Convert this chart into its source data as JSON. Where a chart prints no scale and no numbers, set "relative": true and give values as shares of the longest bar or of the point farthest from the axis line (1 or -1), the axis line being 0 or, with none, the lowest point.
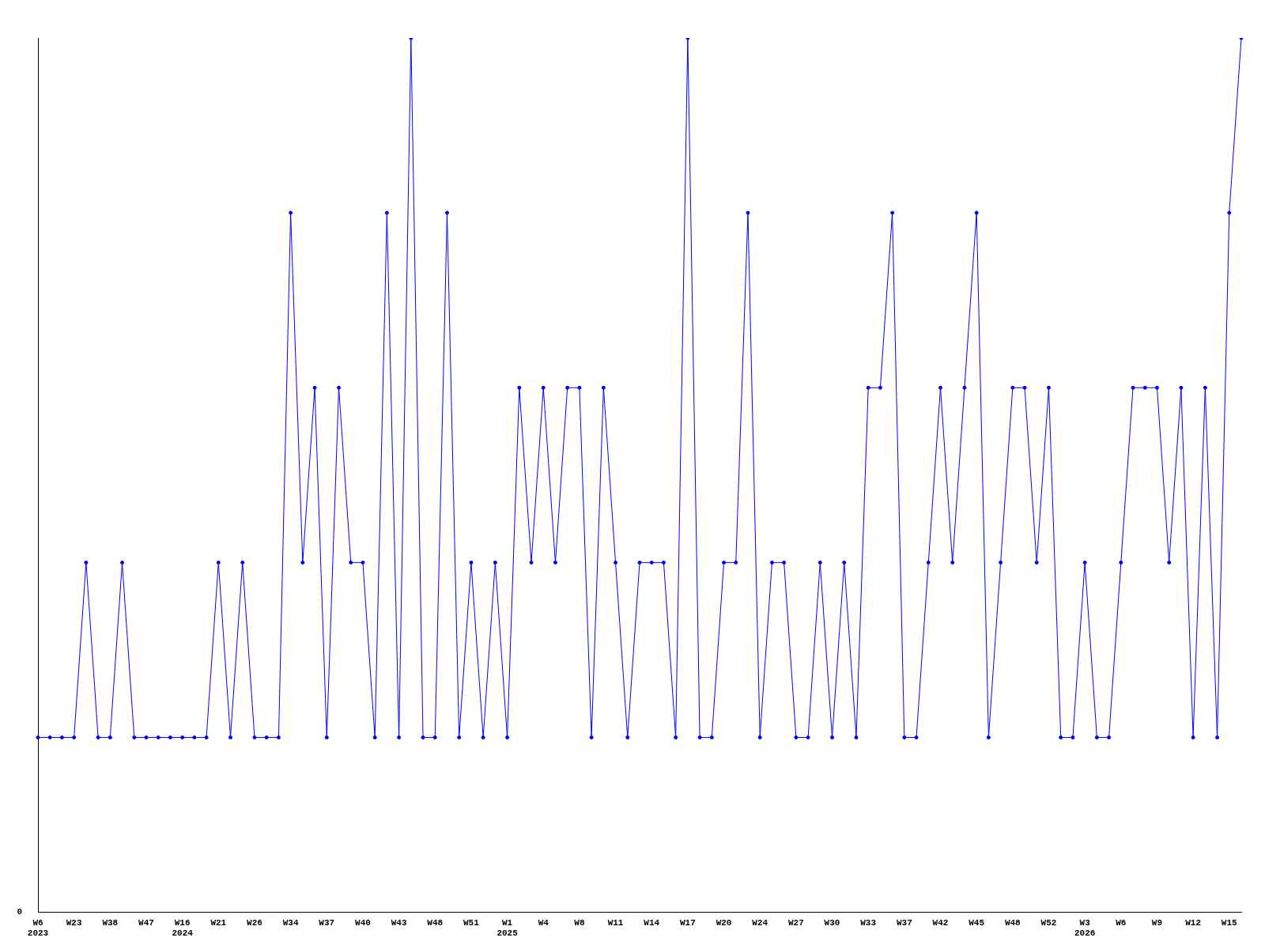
{
  "chart_data": {
    "type": "line",
    "relative": true,
    "color": "#0000ff",
    "marker": "circle",
    "grid": false,
    "legend": false,
    "annotations": [
      "0"
    ],
    "categories": [
      "W6\n2023",
      null,
      null,
      "W23",
      null,
      null,
      "W38",
      null,
      null,
      "W47",
      null,
      null,
      "W16\n2024",
      null,
      null,
      "W21",
      null,
      null,
      "W26",
      null,
      null,
      "W34",
      null,
      null,
      "W37",
      null,
      null,
      "W40",
      null,
      null,
      "W43",
      null,
      null,
      "W48",
      null,
      null,
      "W51",
      null,
      null,
      "W1\n2025",
      null,
      null,
      "W4",
      null,
      null,
      "W8",
      null,
      null,
      "W11",
      null,
      null,
      "W14",
      null,
      null,
      "W17",
      null,
      null,
      "W20",
      null,
      null,
      "W24",
      null,
      null,
      "W27",
      null,
      null,
      "W30",
      null,
      null,
      "W33",
      null,
      null,
      "W37",
      null,
      null,
      "W42",
      null,
      null,
      "W45",
      null,
      null,
      "W48",
      null,
      null,
      "W52",
      null,
      null,
      "W3\n2026",
      null,
      null,
      "W6",
      null,
      null,
      "W9",
      null,
      null,
      "W12",
      null,
      null,
      "W15",
      null
    ],
    "values": [
      0.2,
      0.2,
      0.2,
      0.2,
      0.4,
      0.2,
      0.2,
      0.4,
      0.2,
      0.2,
      0.2,
      0.2,
      0.2,
      0.2,
      0.2,
      0.4,
      0.2,
      0.4,
      0.2,
      0.2,
      0.2,
      0.8,
      0.4,
      0.6,
      0.2,
      0.6,
      0.4,
      0.4,
      0.2,
      0.8,
      0.2,
      1,
      0.2,
      0.2,
      0.8,
      0.2,
      0.4,
      0.2,
      0.4,
      0.2,
      0.6,
      0.4,
      0.6,
      0.4,
      0.6,
      0.6,
      0.2,
      0.6,
      0.4,
      0.2,
      0.4,
      0.4,
      0.4,
      0.2,
      1,
      0.2,
      0.2,
      0.4,
      0.4,
      0.8,
      0.2,
      0.4,
      0.4,
      0.2,
      0.2,
      0.4,
      0.2,
      0.4,
      0.2,
      0.6,
      0.6,
      0.8,
      0.2,
      0.2,
      0.4,
      0.6,
      0.4,
      0.6,
      0.8,
      0.2,
      0.4,
      0.6,
      0.6,
      0.4,
      0.6,
      0.2,
      0.2,
      0.4,
      0.2,
      0.2,
      0.4,
      0.6,
      0.6,
      0.6,
      0.4,
      0.6,
      0.2,
      0.6,
      0.2,
      0.8,
      1
    ]
  }
}
